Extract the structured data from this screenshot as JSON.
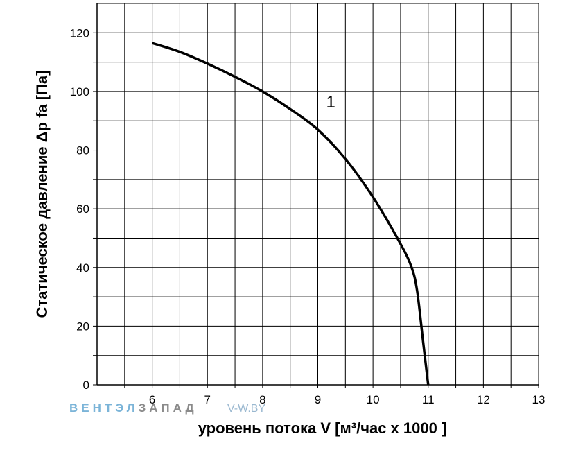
{
  "chart_data": {
    "type": "line",
    "xlabel": "уровень потока  V [м³/час х 1000 ]",
    "ylabel": "Статическое давление  Δp fa [Па]",
    "xlim": [
      5,
      13
    ],
    "ylim": [
      0,
      130
    ],
    "x_ticks": [
      "6",
      "7",
      "8",
      "9",
      "10",
      "11",
      "12",
      "13"
    ],
    "x_tick_values": [
      6,
      7,
      8,
      9,
      10,
      11,
      12,
      13
    ],
    "y_ticks": [
      "0",
      "20",
      "40",
      "60",
      "80",
      "100",
      "120"
    ],
    "y_tick_values": [
      0,
      20,
      40,
      60,
      80,
      100,
      120
    ],
    "grid": true,
    "series": [
      {
        "name": "1",
        "x": [
          6.0,
          6.5,
          7.0,
          7.5,
          8.0,
          8.5,
          9.0,
          9.5,
          10.0,
          10.5,
          10.7,
          10.8,
          10.9,
          10.95,
          11.0
        ],
        "y": [
          116.5,
          113.5,
          109.5,
          105,
          100,
          94,
          87,
          77,
          64,
          48,
          40,
          32,
          16,
          8,
          0
        ]
      }
    ],
    "annotations": [
      {
        "text": "1",
        "x": 9.15,
        "y": 94.5
      }
    ],
    "colors": {
      "line": "#000000",
      "grid": "#000000"
    }
  },
  "watermark": {
    "part1": "ВЕНТЭЛ",
    "part2": "ЗАПАД",
    "part3": "V-W.BY",
    "color1": "#7bb4d8",
    "color2": "#8a8a8a",
    "color3": "#9ab8d0"
  }
}
